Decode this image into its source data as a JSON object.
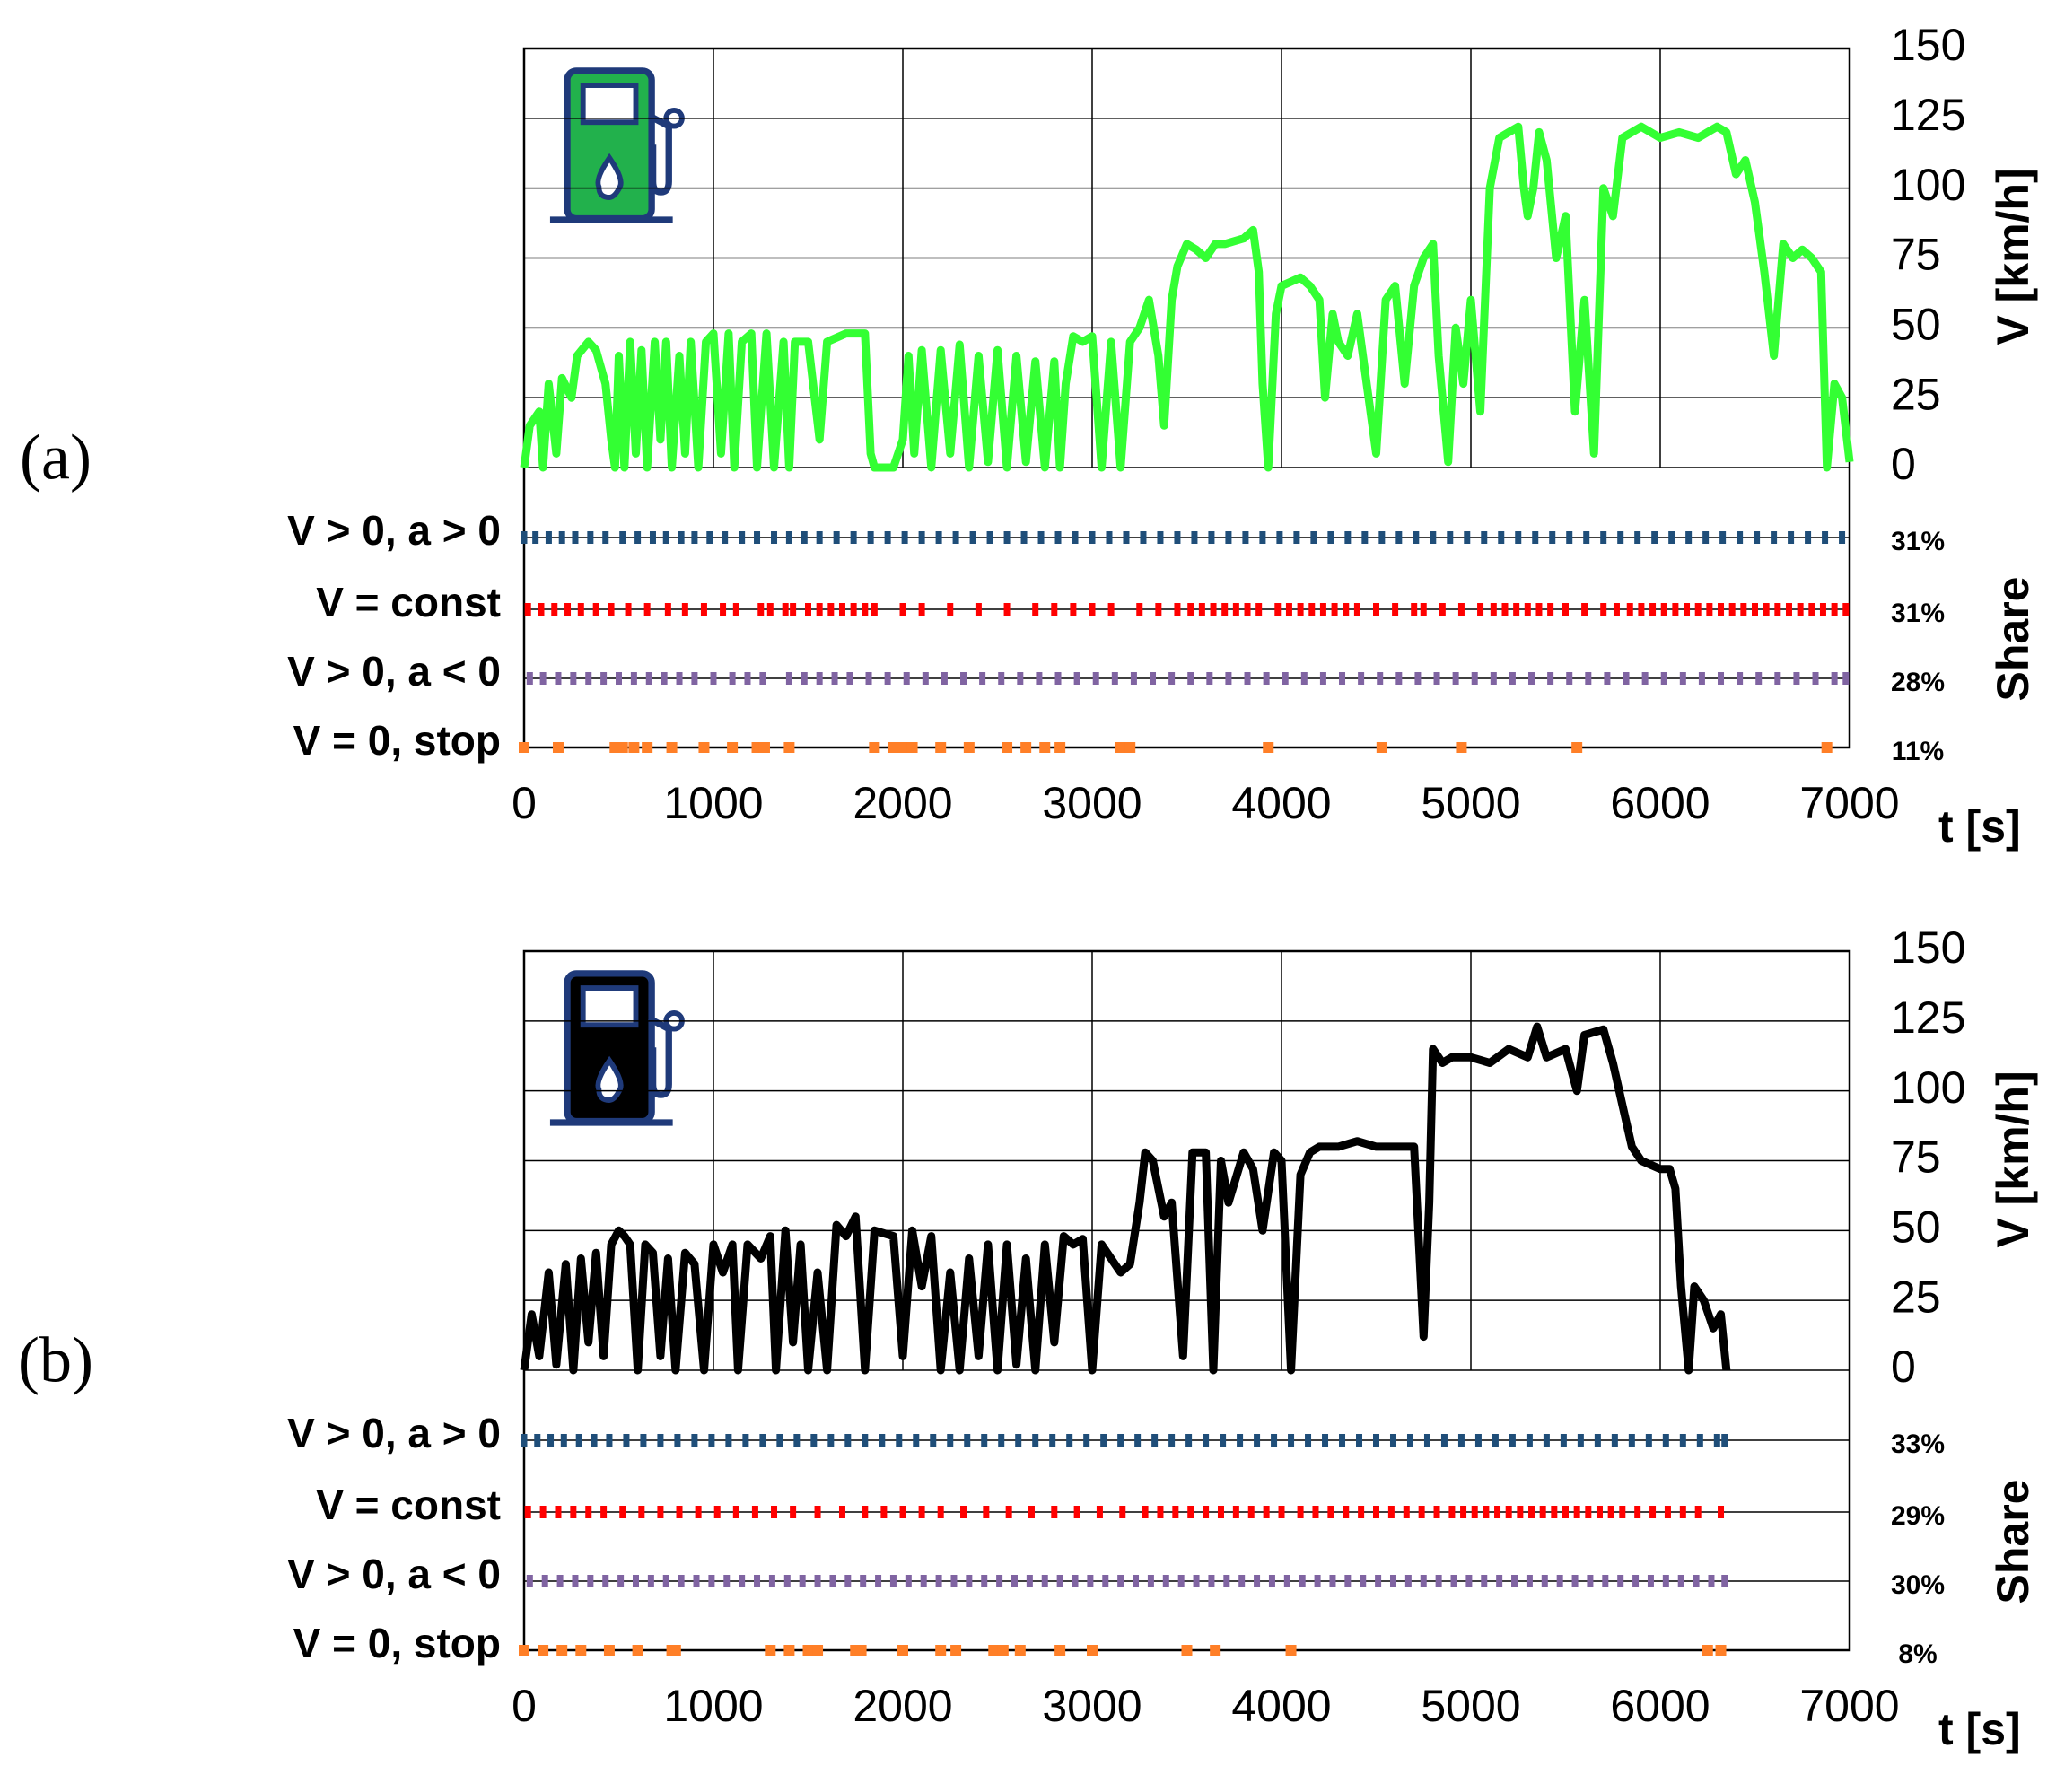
{
  "chart_data": [
    {
      "type": "line",
      "panel_label": "(a)",
      "xlabel": "t [s]",
      "ylabel": "V [km/h]",
      "color": "#33ff33",
      "xlim": [
        0,
        7000
      ],
      "xticks": [
        0,
        1000,
        2000,
        3000,
        4000,
        5000,
        6000,
        7000
      ],
      "ylim": [
        0,
        150
      ],
      "yticks": [
        0,
        25,
        50,
        75,
        100,
        125,
        150
      ],
      "grid": true,
      "x": [
        0,
        30,
        80,
        100,
        130,
        170,
        200,
        250,
        280,
        340,
        380,
        430,
        460,
        480,
        500,
        530,
        560,
        590,
        620,
        650,
        690,
        720,
        750,
        780,
        820,
        850,
        880,
        920,
        960,
        1000,
        1040,
        1080,
        1110,
        1150,
        1200,
        1230,
        1280,
        1320,
        1370,
        1400,
        1430,
        1500,
        1560,
        1600,
        1700,
        1800,
        1830,
        1850,
        1950,
        2000,
        2030,
        2060,
        2100,
        2150,
        2200,
        2250,
        2300,
        2350,
        2400,
        2450,
        2500,
        2550,
        2600,
        2650,
        2700,
        2750,
        2800,
        2830,
        2860,
        2900,
        2950,
        3000,
        3050,
        3100,
        3150,
        3200,
        3250,
        3300,
        3350,
        3380,
        3420,
        3450,
        3500,
        3550,
        3600,
        3650,
        3700,
        3800,
        3850,
        3880,
        3900,
        3930,
        3970,
        4000,
        4100,
        4150,
        4200,
        4230,
        4270,
        4300,
        4350,
        4400,
        4450,
        4500,
        4550,
        4600,
        4650,
        4700,
        4750,
        4800,
        4830,
        4880,
        4920,
        4960,
        5000,
        5050,
        5100,
        5150,
        5200,
        5250,
        5280,
        5300,
        5330,
        5360,
        5400,
        5450,
        5500,
        5550,
        5600,
        5650,
        5700,
        5750,
        5800,
        5900,
        6000,
        6100,
        6200,
        6300,
        6350,
        6400,
        6450,
        6500,
        6550,
        6600,
        6650,
        6700,
        6750,
        6800,
        6850,
        6880,
        6920,
        6960,
        7000
      ],
      "values": [
        0,
        15,
        20,
        0,
        30,
        5,
        32,
        25,
        40,
        45,
        42,
        30,
        10,
        0,
        40,
        0,
        45,
        5,
        42,
        0,
        45,
        10,
        45,
        0,
        40,
        5,
        45,
        0,
        45,
        48,
        5,
        48,
        0,
        45,
        48,
        0,
        48,
        0,
        45,
        0,
        45,
        45,
        10,
        45,
        48,
        48,
        5,
        0,
        0,
        10,
        40,
        5,
        42,
        0,
        42,
        5,
        44,
        0,
        40,
        2,
        42,
        0,
        40,
        2,
        38,
        0,
        38,
        0,
        30,
        47,
        45,
        47,
        0,
        45,
        0,
        45,
        50,
        60,
        40,
        15,
        60,
        72,
        80,
        78,
        75,
        80,
        80,
        82,
        85,
        70,
        30,
        0,
        55,
        65,
        68,
        65,
        60,
        25,
        55,
        45,
        40,
        55,
        30,
        5,
        60,
        65,
        30,
        65,
        75,
        80,
        40,
        2,
        50,
        30,
        60,
        20,
        100,
        118,
        120,
        122,
        100,
        90,
        100,
        120,
        110,
        75,
        90,
        20,
        60,
        5,
        100,
        90,
        118,
        122,
        118,
        120,
        118,
        122,
        120,
        105,
        110,
        95,
        70,
        40,
        80,
        75,
        78,
        75,
        70,
        0,
        30,
        25,
        2
      ],
      "modes": {
        "share_label": "Share",
        "categories": [
          "V > 0, a > 0",
          "V = const",
          "V > 0, a < 0",
          "V = 0, stop"
        ],
        "colors": [
          "#1f4e79",
          "#ff0000",
          "#8064a2",
          "#ff7f27"
        ],
        "values": [
          31,
          31,
          28,
          11
        ],
        "value_labels": [
          "31%",
          "31%",
          "28%",
          "11%"
        ],
        "events": [
          [
            0,
            60,
            130,
            200,
            270,
            350,
            430,
            520,
            600,
            680,
            750,
            830,
            900,
            980,
            1060,
            1150,
            1230,
            1320,
            1400,
            1480,
            1560,
            1650,
            1740,
            1830,
            1920,
            2010,
            2100,
            2190,
            2280,
            2370,
            2460,
            2550,
            2640,
            2730,
            2820,
            2910,
            3000,
            3090,
            3180,
            3270,
            3360,
            3450,
            3540,
            3630,
            3720,
            3810,
            3900,
            3990,
            4080,
            4170,
            4260,
            4350,
            4440,
            4530,
            4620,
            4710,
            4800,
            4890,
            4980,
            5070,
            5160,
            5250,
            5340,
            5430,
            5520,
            5610,
            5700,
            5790,
            5880,
            5970,
            6060,
            6150,
            6240,
            6330,
            6420,
            6510,
            6600,
            6690,
            6780,
            6870,
            6960
          ],
          [
            20,
            90,
            160,
            230,
            300,
            380,
            460,
            550,
            650,
            760,
            850,
            950,
            1050,
            1120,
            1250,
            1300,
            1380,
            1420,
            1500,
            1560,
            1620,
            1680,
            1740,
            1800,
            1850,
            2000,
            2100,
            2250,
            2400,
            2550,
            2700,
            2800,
            2900,
            3000,
            3100,
            3250,
            3350,
            3450,
            3520,
            3580,
            3640,
            3700,
            3760,
            3820,
            3880,
            3980,
            4040,
            4100,
            4160,
            4220,
            4280,
            4340,
            4400,
            4500,
            4600,
            4700,
            4750,
            4850,
            4950,
            5050,
            5120,
            5180,
            5240,
            5300,
            5360,
            5420,
            5500,
            5600,
            5700,
            5770,
            5840,
            5900,
            5960,
            6020,
            6080,
            6140,
            6200,
            6260,
            6320,
            6380,
            6440,
            6500,
            6560,
            6620,
            6680,
            6740,
            6800,
            6860,
            6920,
            6980
          ],
          [
            30,
            100,
            180,
            260,
            340,
            420,
            500,
            580,
            660,
            740,
            820,
            900,
            1000,
            1100,
            1180,
            1260,
            1400,
            1480,
            1560,
            1640,
            1720,
            1820,
            1920,
            2020,
            2120,
            2220,
            2320,
            2420,
            2520,
            2620,
            2720,
            2820,
            2920,
            3020,
            3120,
            3220,
            3320,
            3420,
            3520,
            3620,
            3720,
            3820,
            3920,
            4020,
            4120,
            4220,
            4320,
            4420,
            4520,
            4620,
            4720,
            4820,
            4920,
            5020,
            5120,
            5220,
            5320,
            5420,
            5520,
            5620,
            5720,
            5820,
            5920,
            6020,
            6120,
            6220,
            6320,
            6420,
            6520,
            6620,
            6720,
            6820,
            6920,
            6980
          ],
          [
            0,
            180,
            480,
            520,
            580,
            650,
            780,
            950,
            1100,
            1230,
            1270,
            1400,
            1850,
            1950,
            2000,
            2050,
            2200,
            2350,
            2550,
            2650,
            2750,
            2830,
            3150,
            3200,
            3930,
            4530,
            4950,
            5560,
            6880
          ]
        ]
      }
    },
    {
      "type": "line",
      "panel_label": "(b)",
      "xlabel": "t [s]",
      "ylabel": "V [km/h]",
      "color": "#000000",
      "xlim": [
        0,
        7000
      ],
      "xticks": [
        0,
        1000,
        2000,
        3000,
        4000,
        5000,
        6000,
        7000
      ],
      "ylim": [
        0,
        150
      ],
      "yticks": [
        0,
        25,
        50,
        75,
        100,
        125,
        150
      ],
      "grid": true,
      "x": [
        0,
        40,
        80,
        130,
        170,
        220,
        260,
        300,
        340,
        380,
        420,
        460,
        500,
        530,
        560,
        600,
        640,
        680,
        720,
        760,
        800,
        850,
        900,
        950,
        1000,
        1050,
        1100,
        1130,
        1180,
        1250,
        1300,
        1330,
        1380,
        1420,
        1460,
        1500,
        1550,
        1600,
        1650,
        1700,
        1750,
        1800,
        1850,
        1950,
        2000,
        2050,
        2100,
        2150,
        2200,
        2250,
        2300,
        2350,
        2400,
        2450,
        2500,
        2550,
        2600,
        2650,
        2700,
        2750,
        2800,
        2850,
        2900,
        2950,
        3000,
        3050,
        3100,
        3150,
        3200,
        3250,
        3280,
        3320,
        3380,
        3420,
        3480,
        3530,
        3600,
        3640,
        3680,
        3720,
        3800,
        3850,
        3900,
        3960,
        4000,
        4050,
        4100,
        4150,
        4200,
        4300,
        4400,
        4500,
        4600,
        4700,
        4730,
        4750,
        4780,
        4800,
        4850,
        4900,
        5000,
        5100,
        5200,
        5300,
        5350,
        5400,
        5500,
        5560,
        5600,
        5700,
        5750,
        5800,
        5850,
        5900,
        6000,
        6050,
        6080,
        6110,
        6150,
        6180,
        6230,
        6280,
        6320,
        6350
      ],
      "values": [
        0,
        20,
        5,
        35,
        2,
        38,
        0,
        40,
        10,
        42,
        5,
        45,
        50,
        48,
        45,
        0,
        45,
        42,
        5,
        40,
        0,
        42,
        38,
        0,
        45,
        35,
        45,
        0,
        45,
        40,
        48,
        0,
        50,
        10,
        45,
        0,
        35,
        0,
        52,
        48,
        55,
        0,
        50,
        48,
        5,
        50,
        30,
        48,
        0,
        35,
        0,
        40,
        5,
        45,
        0,
        45,
        2,
        40,
        0,
        45,
        10,
        48,
        45,
        47,
        0,
        45,
        40,
        35,
        38,
        60,
        78,
        75,
        55,
        60,
        5,
        78,
        78,
        0,
        75,
        60,
        78,
        72,
        50,
        78,
        75,
        0,
        70,
        78,
        80,
        80,
        82,
        80,
        80,
        80,
        40,
        12,
        60,
        115,
        110,
        112,
        112,
        110,
        115,
        112,
        123,
        112,
        115,
        100,
        120,
        122,
        110,
        95,
        80,
        75,
        72,
        72,
        65,
        30,
        0,
        30,
        25,
        15,
        20,
        0
      ],
      "modes": {
        "share_label": "Share",
        "categories": [
          "V > 0, a > 0",
          "V = const",
          "V > 0, a < 0",
          "V = 0, stop"
        ],
        "colors": [
          "#1f4e79",
          "#ff0000",
          "#8064a2",
          "#ff7f27"
        ],
        "values": [
          33,
          29,
          30,
          8
        ],
        "value_labels": [
          "33%",
          "29%",
          "30%",
          "8%"
        ],
        "events": [
          [
            0,
            70,
            140,
            210,
            290,
            370,
            450,
            540,
            630,
            720,
            810,
            900,
            990,
            1080,
            1170,
            1260,
            1350,
            1440,
            1530,
            1620,
            1710,
            1800,
            1890,
            1980,
            2070,
            2160,
            2250,
            2340,
            2430,
            2520,
            2610,
            2700,
            2790,
            2880,
            2970,
            3060,
            3150,
            3240,
            3330,
            3420,
            3510,
            3600,
            3690,
            3780,
            3870,
            3960,
            4050,
            4140,
            4230,
            4320,
            4410,
            4500,
            4590,
            4680,
            4770,
            4860,
            4950,
            5040,
            5130,
            5220,
            5310,
            5400,
            5490,
            5580,
            5670,
            5760,
            5850,
            5940,
            6030,
            6120,
            6210,
            6300,
            6340
          ],
          [
            20,
            100,
            180,
            260,
            340,
            420,
            520,
            620,
            720,
            820,
            920,
            1020,
            1120,
            1220,
            1320,
            1420,
            1550,
            1680,
            1800,
            1900,
            2000,
            2100,
            2200,
            2320,
            2440,
            2560,
            2680,
            2800,
            2920,
            3040,
            3160,
            3280,
            3360,
            3440,
            3520,
            3600,
            3680,
            3760,
            3840,
            3920,
            4000,
            4100,
            4180,
            4260,
            4340,
            4420,
            4500,
            4580,
            4660,
            4740,
            4820,
            4900,
            4960,
            5020,
            5080,
            5140,
            5200,
            5260,
            5320,
            5380,
            5440,
            5500,
            5560,
            5620,
            5680,
            5740,
            5800,
            5880,
            5960,
            6040,
            6120,
            6200,
            6320
          ],
          [
            30,
            110,
            190,
            270,
            350,
            430,
            510,
            590,
            670,
            750,
            830,
            910,
            990,
            1070,
            1150,
            1230,
            1310,
            1390,
            1470,
            1550,
            1630,
            1710,
            1790,
            1870,
            1950,
            2030,
            2110,
            2190,
            2270,
            2350,
            2430,
            2510,
            2590,
            2670,
            2750,
            2830,
            2910,
            2990,
            3070,
            3150,
            3230,
            3310,
            3390,
            3470,
            3550,
            3630,
            3710,
            3790,
            3870,
            3950,
            4030,
            4110,
            4190,
            4270,
            4350,
            4430,
            4510,
            4590,
            4670,
            4750,
            4830,
            4910,
            4990,
            5070,
            5150,
            5230,
            5310,
            5390,
            5470,
            5550,
            5630,
            5710,
            5790,
            5870,
            5950,
            6030,
            6110,
            6190,
            6270,
            6340
          ],
          [
            0,
            100,
            200,
            300,
            450,
            600,
            780,
            800,
            1300,
            1400,
            1500,
            1520,
            1550,
            1750,
            1780,
            2000,
            2200,
            2280,
            2480,
            2530,
            2620,
            2830,
            3000,
            3500,
            3650,
            4050,
            6250,
            6320
          ]
        ]
      }
    }
  ]
}
